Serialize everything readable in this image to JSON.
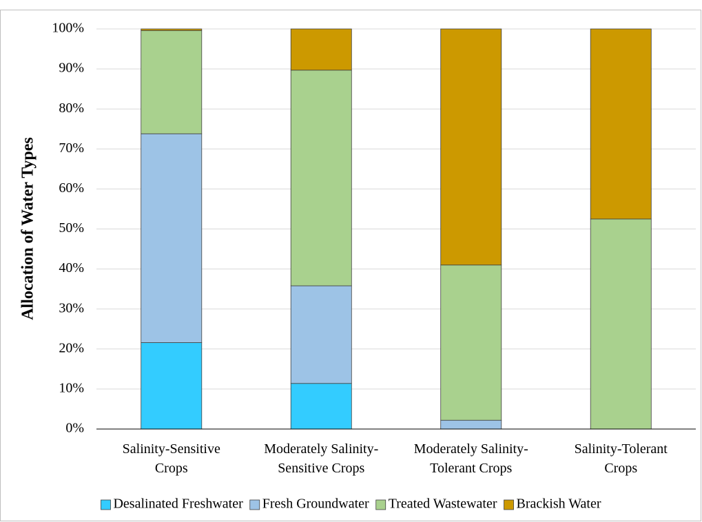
{
  "chart_data": {
    "type": "stacked_bar",
    "y_label": "Allocation of Water Types",
    "categories": [
      "Salinity-Sensitive\nCrops",
      "Moderately Salinity-\nSensitive Crops",
      "Moderately Salinity-\nTolerant Crops",
      "Salinity-Tolerant\nCrops"
    ],
    "series": [
      {
        "name": "Desalinated Freshwater",
        "color": "#33ccff",
        "values": [
          21.6,
          11.4,
          0,
          0
        ]
      },
      {
        "name": "Fresh Groundwater",
        "color": "#9dc3e6",
        "values": [
          52.2,
          24.4,
          2.2,
          0
        ]
      },
      {
        "name": "Treated Wastewater",
        "color": "#a9d18e",
        "values": [
          25.8,
          53.9,
          38.8,
          52.5
        ]
      },
      {
        "name": "Brackish Water",
        "color": "#cc9900",
        "values": [
          0.4,
          10.3,
          59.0,
          47.5
        ]
      }
    ],
    "ylim": [
      0,
      100
    ],
    "yticks": [
      {
        "value": 0,
        "label": "0%"
      },
      {
        "value": 10,
        "label": "10%"
      },
      {
        "value": 20,
        "label": "20%"
      },
      {
        "value": 30,
        "label": "30%"
      },
      {
        "value": 40,
        "label": "40%"
      },
      {
        "value": 50,
        "label": "50%"
      },
      {
        "value": 60,
        "label": "60%"
      },
      {
        "value": 70,
        "label": "70%"
      },
      {
        "value": 80,
        "label": "80%"
      },
      {
        "value": 90,
        "label": "90%"
      },
      {
        "value": 100,
        "label": "100%"
      }
    ],
    "grid": true,
    "legend": "bottom"
  }
}
